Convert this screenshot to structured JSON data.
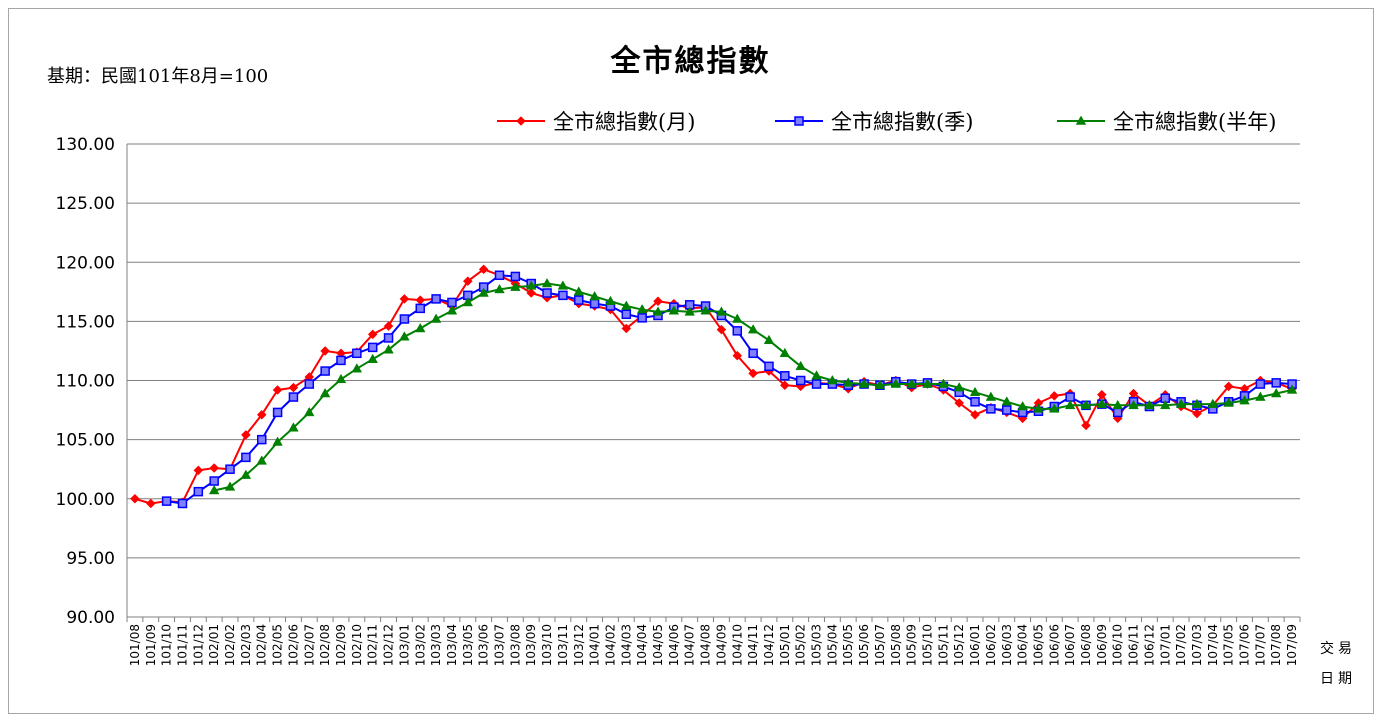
{
  "page": {
    "base_note": "基期：民國101年8月=100",
    "axis_note_line1": "交易",
    "axis_note_line2": "日期"
  },
  "chart_data": {
    "type": "line",
    "title": "全市總指數",
    "ylim": [
      90,
      130
    ],
    "yticks": [
      "90.00",
      "95.00",
      "100.00",
      "105.00",
      "110.00",
      "115.00",
      "120.00",
      "125.00",
      "130.00"
    ],
    "grid": true,
    "legend_position": "top-right",
    "categories": [
      "101/08",
      "101/09",
      "101/10",
      "101/11",
      "101/12",
      "102/01",
      "102/02",
      "102/03",
      "102/04",
      "102/05",
      "102/06",
      "102/07",
      "102/08",
      "102/09",
      "102/10",
      "102/11",
      "102/12",
      "103/01",
      "103/02",
      "103/03",
      "103/04",
      "103/05",
      "103/06",
      "103/07",
      "103/08",
      "103/09",
      "103/10",
      "103/11",
      "103/12",
      "104/01",
      "104/02",
      "104/03",
      "104/04",
      "104/05",
      "104/06",
      "104/07",
      "104/08",
      "104/09",
      "104/10",
      "104/11",
      "104/12",
      "105/01",
      "105/02",
      "105/03",
      "105/04",
      "105/05",
      "105/06",
      "105/07",
      "105/08",
      "105/09",
      "105/10",
      "105/11",
      "105/12",
      "106/01",
      "106/02",
      "106/03",
      "106/04",
      "106/05",
      "106/06",
      "106/07",
      "106/08",
      "106/09",
      "106/10",
      "106/11",
      "106/12",
      "107/01",
      "107/02",
      "107/03",
      "107/04",
      "107/05",
      "107/06",
      "107/07",
      "107/08",
      "107/09"
    ],
    "series": [
      {
        "name": "全市總指數(月)",
        "color": "#ff0000",
        "marker": "diamond",
        "values": [
          100.0,
          99.6,
          99.8,
          99.7,
          102.4,
          102.6,
          102.5,
          105.4,
          107.1,
          109.2,
          109.4,
          110.3,
          112.5,
          112.3,
          112.4,
          113.9,
          114.6,
          116.9,
          116.8,
          116.9,
          116.3,
          118.4,
          119.4,
          118.9,
          118.2,
          117.4,
          117.0,
          117.2,
          116.5,
          116.3,
          116.0,
          114.4,
          115.5,
          116.7,
          116.5,
          116.1,
          116.2,
          114.3,
          112.1,
          110.6,
          110.8,
          109.6,
          109.5,
          109.8,
          109.7,
          109.3,
          109.9,
          109.6,
          110.0,
          109.4,
          109.7,
          109.2,
          108.1,
          107.1,
          107.7,
          107.3,
          106.8,
          108.1,
          108.7,
          108.9,
          106.2,
          108.8,
          106.8,
          108.9,
          107.9,
          108.8,
          107.8,
          107.2,
          107.9,
          109.5,
          109.3,
          110.0,
          109.8,
          109.3
        ]
      },
      {
        "name": "全市總指數(季)",
        "color": "#0000ff",
        "marker": "square",
        "values": [
          null,
          null,
          99.8,
          99.6,
          100.6,
          101.5,
          102.5,
          103.5,
          105.0,
          107.3,
          108.6,
          109.7,
          110.8,
          111.7,
          112.3,
          112.8,
          113.6,
          115.2,
          116.1,
          116.9,
          116.6,
          117.2,
          117.9,
          118.9,
          118.8,
          118.2,
          117.4,
          117.2,
          116.8,
          116.5,
          116.3,
          115.6,
          115.3,
          115.5,
          116.2,
          116.4,
          116.3,
          115.5,
          114.2,
          112.3,
          111.2,
          110.4,
          110.0,
          109.7,
          109.7,
          109.6,
          109.7,
          109.6,
          109.9,
          109.7,
          109.8,
          109.5,
          109.0,
          108.2,
          107.6,
          107.5,
          107.3,
          107.4,
          107.8,
          108.6,
          107.9,
          108.0,
          107.3,
          108.2,
          107.8,
          108.5,
          108.2,
          107.9,
          107.6,
          108.2,
          108.7,
          109.7,
          109.8,
          109.7
        ]
      },
      {
        "name": "全市總指數(半年)",
        "color": "#008000",
        "marker": "triangle",
        "values": [
          null,
          null,
          null,
          null,
          null,
          100.7,
          101.0,
          102.0,
          103.2,
          104.8,
          106.0,
          107.3,
          108.9,
          110.1,
          111.0,
          111.8,
          112.6,
          113.7,
          114.4,
          115.2,
          115.9,
          116.6,
          117.4,
          117.7,
          117.9,
          118.0,
          118.2,
          118.0,
          117.5,
          117.1,
          116.7,
          116.3,
          116.0,
          115.8,
          115.9,
          115.8,
          115.9,
          115.8,
          115.2,
          114.3,
          113.4,
          112.3,
          111.2,
          110.4,
          110.0,
          109.8,
          109.7,
          109.6,
          109.7,
          109.7,
          109.7,
          109.7,
          109.4,
          109.0,
          108.6,
          108.2,
          107.8,
          107.6,
          107.6,
          107.9,
          107.9,
          108.0,
          107.9,
          107.9,
          107.9,
          107.9,
          108.0,
          108.0,
          108.0,
          108.1,
          108.3,
          108.6,
          108.9,
          109.2
        ]
      }
    ]
  }
}
